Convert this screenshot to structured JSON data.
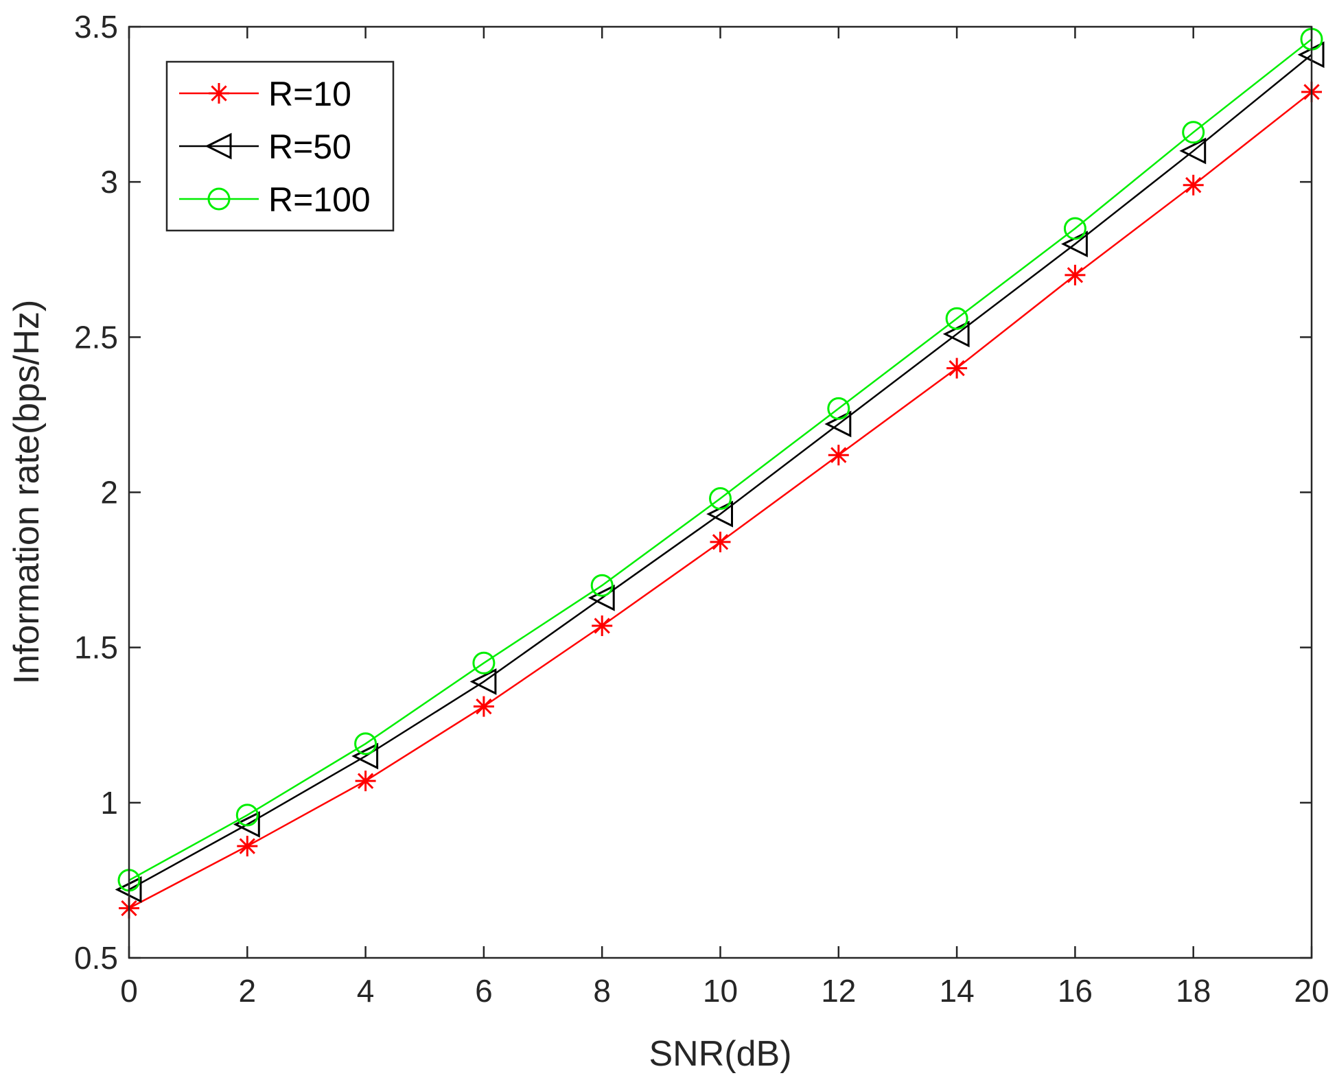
{
  "chart_data": {
    "type": "line",
    "title": "",
    "xlabel": "SNR(dB)",
    "ylabel": "Information rate(bps/Hz)",
    "xlim": [
      0,
      20
    ],
    "ylim": [
      0.5,
      3.5
    ],
    "xticks": [
      0,
      2,
      4,
      6,
      8,
      10,
      12,
      14,
      16,
      18,
      20
    ],
    "xtick_labels": [
      "0",
      "2",
      "4",
      "6",
      "8",
      "10",
      "12",
      "14",
      "16",
      "18",
      "20"
    ],
    "yticks": [
      0.5,
      1,
      1.5,
      2,
      2.5,
      3,
      3.5
    ],
    "ytick_labels": [
      "0.5",
      "1",
      "1.5",
      "2",
      "2.5",
      "3",
      "3.5"
    ],
    "grid": false,
    "legend_position": "top-left",
    "x": [
      0,
      2,
      4,
      6,
      8,
      10,
      12,
      14,
      16,
      18,
      20
    ],
    "series": [
      {
        "name": "R=10",
        "color": "#ff0000",
        "marker": "asterisk",
        "values": [
          0.66,
          0.86,
          1.07,
          1.31,
          1.57,
          1.84,
          2.12,
          2.4,
          2.7,
          2.99,
          3.29
        ]
      },
      {
        "name": "R=50",
        "color": "#000000",
        "marker": "triangle-left",
        "values": [
          0.72,
          0.93,
          1.15,
          1.39,
          1.66,
          1.93,
          2.22,
          2.51,
          2.8,
          3.1,
          3.41
        ]
      },
      {
        "name": "R=100",
        "color": "#00ee00",
        "marker": "circle",
        "values": [
          0.75,
          0.96,
          1.19,
          1.45,
          1.7,
          1.98,
          2.27,
          2.56,
          2.85,
          3.16,
          3.46
        ]
      }
    ]
  }
}
